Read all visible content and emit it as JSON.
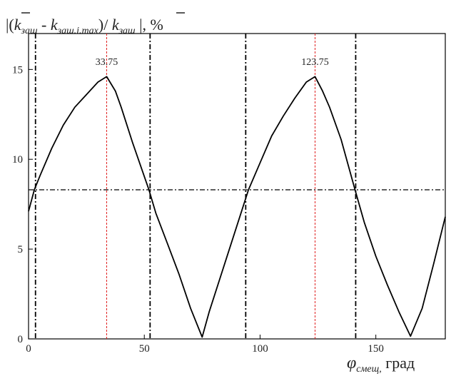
{
  "chart_data": {
    "type": "line",
    "title": "|(k̄заш - kзаш.i.max)/ k̄заш |, %",
    "title_parts": {
      "k_bar_1": "k",
      "sub_1": "заш",
      "minus": " - ",
      "k_2": "k",
      "sub_2": "заш.i.max",
      "slash": ")/ ",
      "k_bar_3": "k",
      "sub_3": "заш",
      "tail": " |, %",
      "open": "|("
    },
    "xlabel_symbol": "φ",
    "xlabel_sub": "смещ,",
    "xlabel_unit": " град",
    "xlim": [
      0,
      180
    ],
    "ylim": [
      0,
      17
    ],
    "x_ticks": [
      0,
      50,
      100,
      150
    ],
    "y_ticks": [
      0,
      5,
      10,
      15
    ],
    "x_tick_labels": [
      "0",
      "50",
      "100",
      "150"
    ],
    "y_tick_labels": [
      "0",
      "5",
      "10",
      "15"
    ],
    "grid": false,
    "series": [
      {
        "color": "#000000",
        "x": [
          0,
          2.5,
          5,
          10,
          15,
          20,
          25,
          30,
          33.75,
          37.5,
          40,
          45,
          52,
          55,
          60,
          65,
          70,
          75,
          78,
          85,
          92,
          95,
          100,
          105,
          110,
          115,
          120,
          123.75,
          127,
          130,
          135,
          141,
          145,
          150,
          155,
          160,
          165,
          170,
          175,
          180
        ],
        "y": [
          7.1,
          8.3,
          9.1,
          10.6,
          11.9,
          12.9,
          13.6,
          14.3,
          14.6,
          13.8,
          12.9,
          10.9,
          8.3,
          7.0,
          5.3,
          3.6,
          1.7,
          0.1,
          1.5,
          4.3,
          7.1,
          8.3,
          9.8,
          11.3,
          12.4,
          13.4,
          14.3,
          14.6,
          13.8,
          12.9,
          11.1,
          8.3,
          6.5,
          4.6,
          3.0,
          1.5,
          0.15,
          1.7,
          4.2,
          6.8
        ]
      }
    ],
    "vlines_dashdot": [
      3,
      52.5,
      93.8,
      141.3
    ],
    "vlines_red_dotted": [
      33.75,
      123.75
    ],
    "hline_dashdot": 8.3,
    "annotations": [
      {
        "x": 33.75,
        "text": "33.75"
      },
      {
        "x": 123.75,
        "text": "123.75"
      }
    ]
  }
}
